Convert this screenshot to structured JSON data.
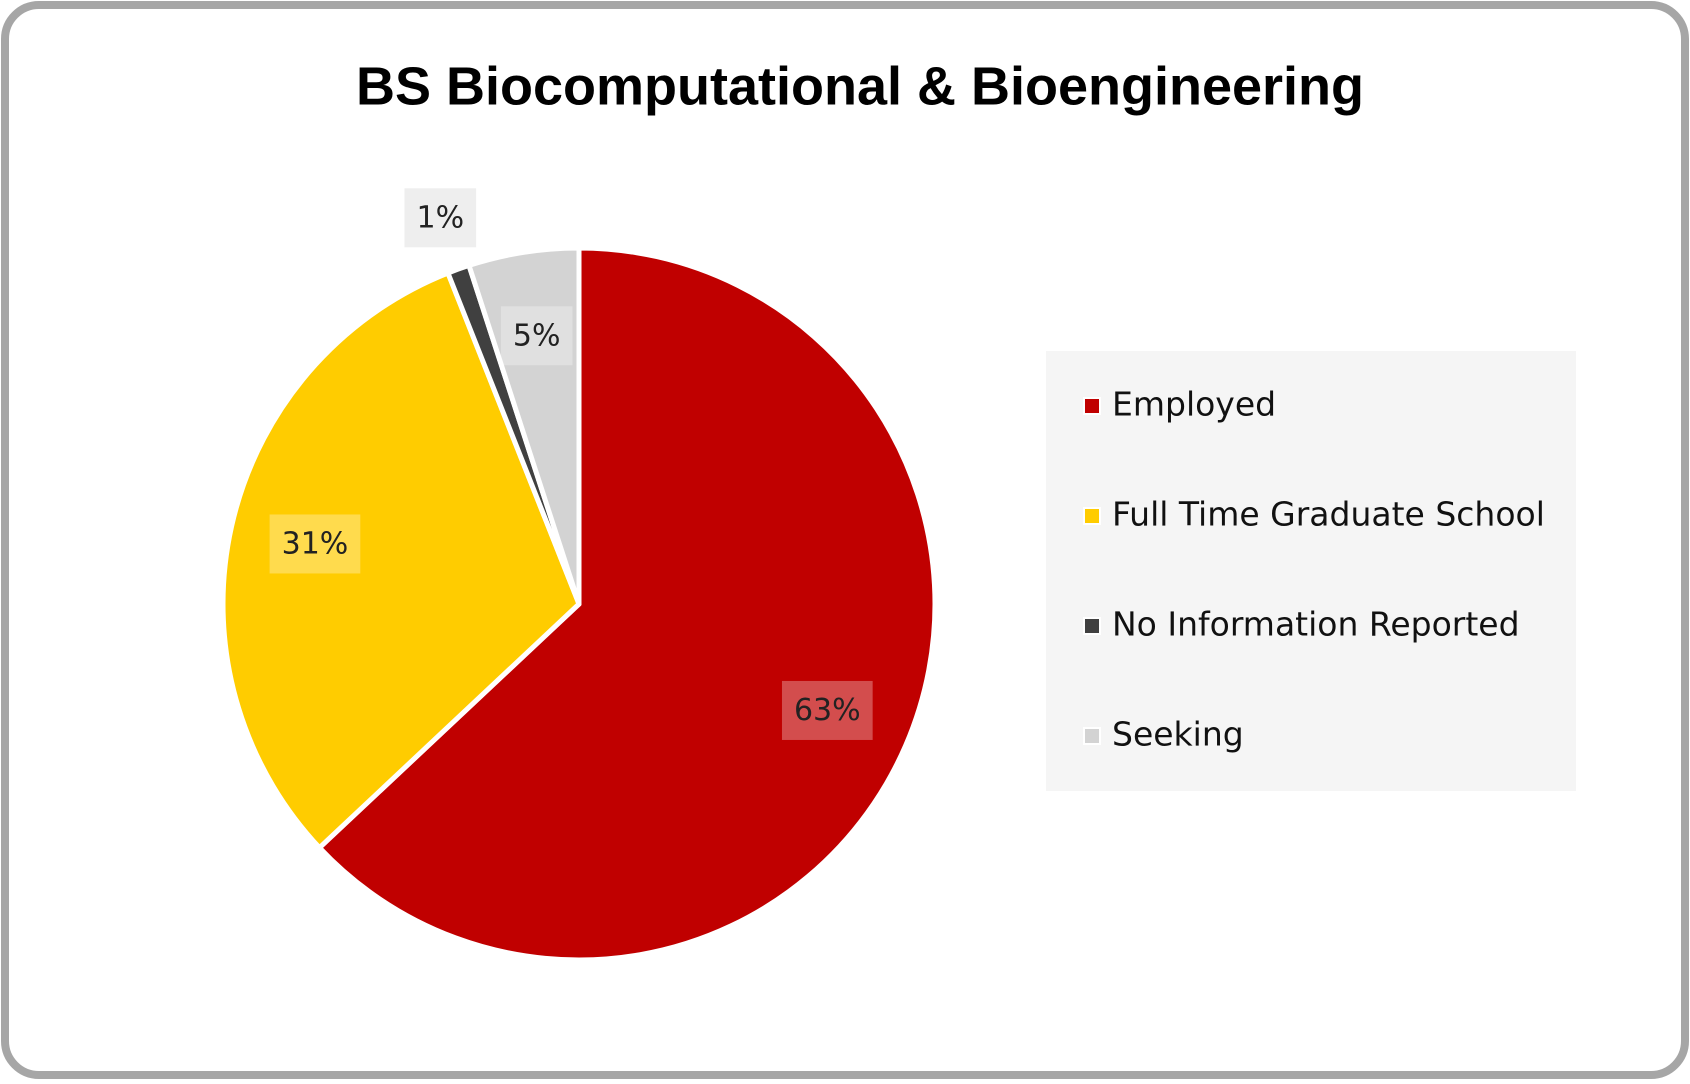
{
  "chart_data": {
    "type": "pie",
    "title": "BS Biocomputational & Bioengineering",
    "categories": [
      "Employed",
      "Full Time Graduate School",
      "No Information Reported",
      "Seeking"
    ],
    "values": [
      63,
      31,
      1,
      5
    ],
    "value_labels": [
      "63%",
      "31%",
      "1%",
      "5%"
    ],
    "colors": [
      "#c00000",
      "#ffcc00",
      "#404040",
      "#d3d3d3"
    ],
    "legend": "right"
  }
}
